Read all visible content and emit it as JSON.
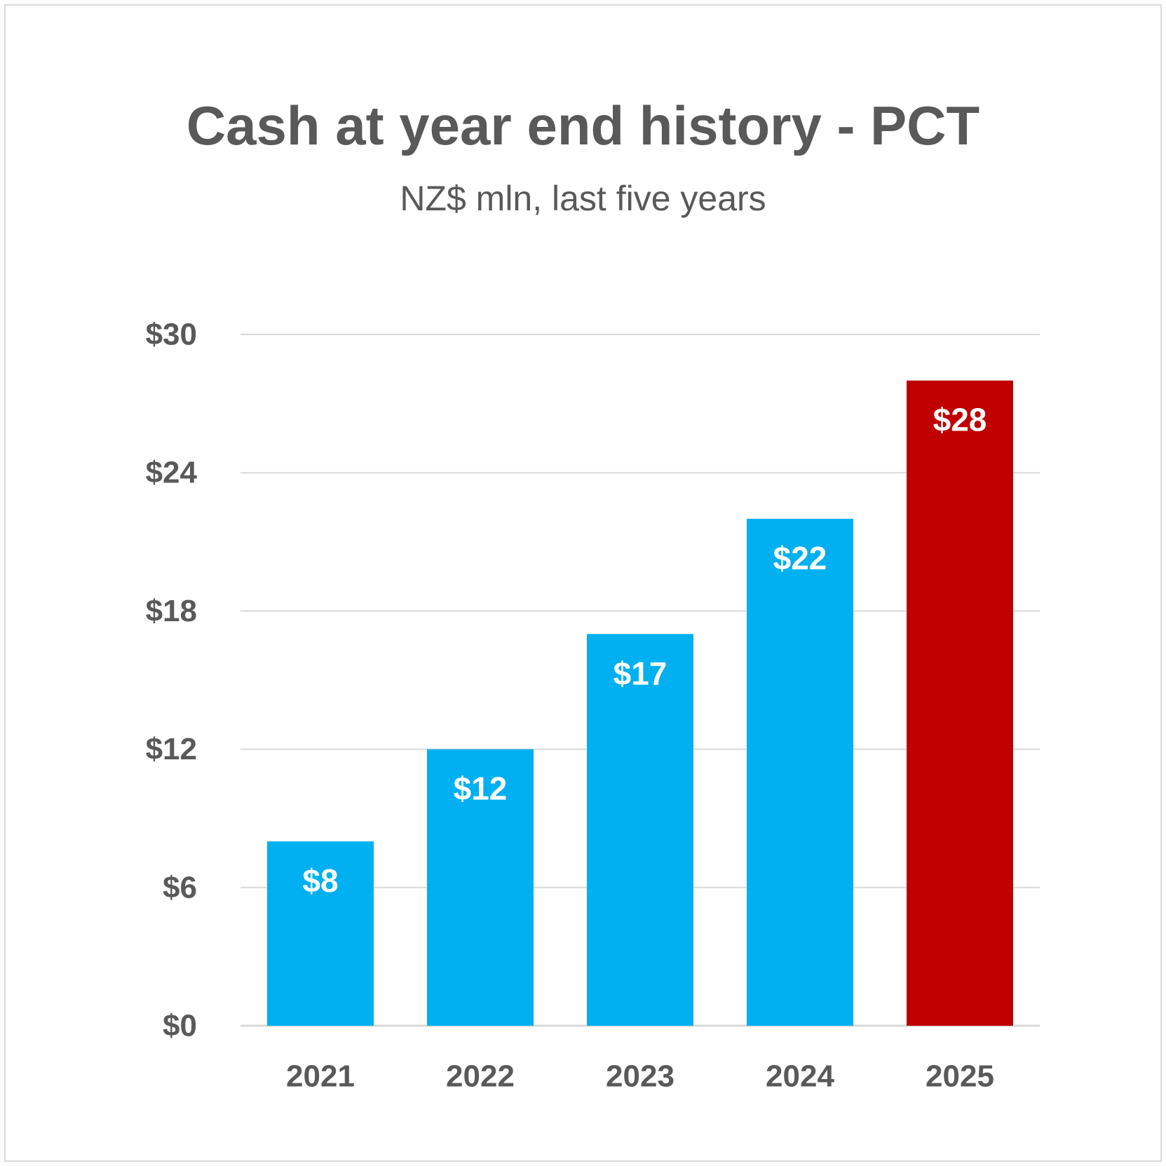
{
  "chart_data": {
    "type": "bar",
    "title": "Cash at year end history - PCT",
    "subtitle": "NZ$ mln, last five years",
    "categories": [
      "2021",
      "2022",
      "2023",
      "2024",
      "2025"
    ],
    "values": [
      8,
      12,
      17,
      22,
      28
    ],
    "data_labels": [
      "$8",
      "$12",
      "$17",
      "$22",
      "$28"
    ],
    "y_ticks": [
      0,
      6,
      12,
      18,
      24,
      30
    ],
    "y_tick_labels": [
      "$0",
      "$6",
      "$12",
      "$18",
      "$24",
      "$30"
    ],
    "ylim": [
      0,
      30
    ],
    "grid": true,
    "legend": "none",
    "colors": {
      "bar_default": "#00B0F0",
      "bar_highlight": "#C00000",
      "gridline": "#d9d9d9",
      "text": "#595959",
      "data_label": "#ffffff"
    },
    "highlight_index": 4
  }
}
